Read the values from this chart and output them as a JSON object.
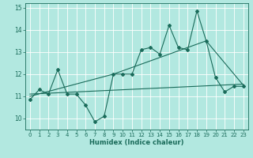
{
  "xlabel": "Humidex (Indice chaleur)",
  "bg_color": "#b2e8e0",
  "grid_color": "#ffffff",
  "line_color": "#1a6b5a",
  "xlim": [
    -0.5,
    23.5
  ],
  "ylim": [
    9.5,
    15.2
  ],
  "xticks": [
    0,
    1,
    2,
    3,
    4,
    5,
    6,
    7,
    8,
    9,
    10,
    11,
    12,
    13,
    14,
    15,
    16,
    17,
    18,
    19,
    20,
    21,
    22,
    23
  ],
  "yticks": [
    10,
    11,
    12,
    13,
    14,
    15
  ],
  "series1_x": [
    0,
    1,
    2,
    3,
    4,
    5,
    6,
    7,
    8,
    9,
    10,
    11,
    12,
    13,
    14,
    15,
    16,
    17,
    18,
    19,
    20,
    21,
    22,
    23
  ],
  "series1_y": [
    10.85,
    11.3,
    11.1,
    12.2,
    11.1,
    11.1,
    10.6,
    9.85,
    10.1,
    12.0,
    12.0,
    12.0,
    13.1,
    13.2,
    12.9,
    14.2,
    13.2,
    13.1,
    14.85,
    13.5,
    11.85,
    11.2,
    11.45,
    11.45
  ],
  "series2_x": [
    0,
    23
  ],
  "series2_y": [
    11.1,
    11.55
  ],
  "series3_x": [
    0,
    9,
    19,
    23
  ],
  "series3_y": [
    11.0,
    12.0,
    13.5,
    11.5
  ]
}
